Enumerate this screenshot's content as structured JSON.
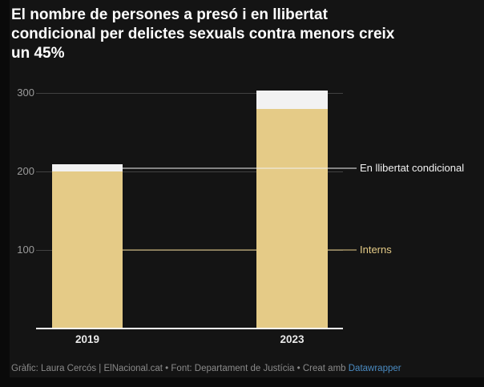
{
  "header": {
    "title_lines": [
      "El nombre de persones a presó i en llibertat",
      "condicional per delictes sexuals contra menors creix",
      "un 45%"
    ]
  },
  "chart_data": {
    "type": "bar",
    "stacked": true,
    "title": "El nombre de persones a presó i en llibertat condicional per delictes sexuals contra menors creix un 45%",
    "categories": [
      "2019",
      "2023"
    ],
    "series": [
      {
        "name": "Interns",
        "values": [
          200,
          280
        ],
        "color": "#e5cb87"
      },
      {
        "name": "En llibertat condicional",
        "values": [
          9,
          23
        ],
        "color": "#f2f2f2"
      }
    ],
    "y_ticks": [
      100,
      200,
      300
    ],
    "ylim": [
      0,
      307
    ],
    "grid": true,
    "legend_position": "direct-labels-right",
    "xlabel": "",
    "ylabel": ""
  },
  "footer": {
    "credit": "Gràfic: Laura Cercós | ElNacional.cat • Font: Departament de Justícia • Creat amb ",
    "link_label": "Datawrapper"
  },
  "colors": {
    "page_background": "#0a0a0a",
    "chart_background": "#141414",
    "interns_bar": "#e5cb87",
    "condicional_bar": "#f2f2f2",
    "gridline": "#424242",
    "axis_line": "#fbfbfb",
    "tick_label": "#9b9b9b",
    "x_label": "#e8e8e8",
    "title": "#ffffff",
    "footer_text": "#8a8a8a",
    "link": "#4a8bc2"
  }
}
